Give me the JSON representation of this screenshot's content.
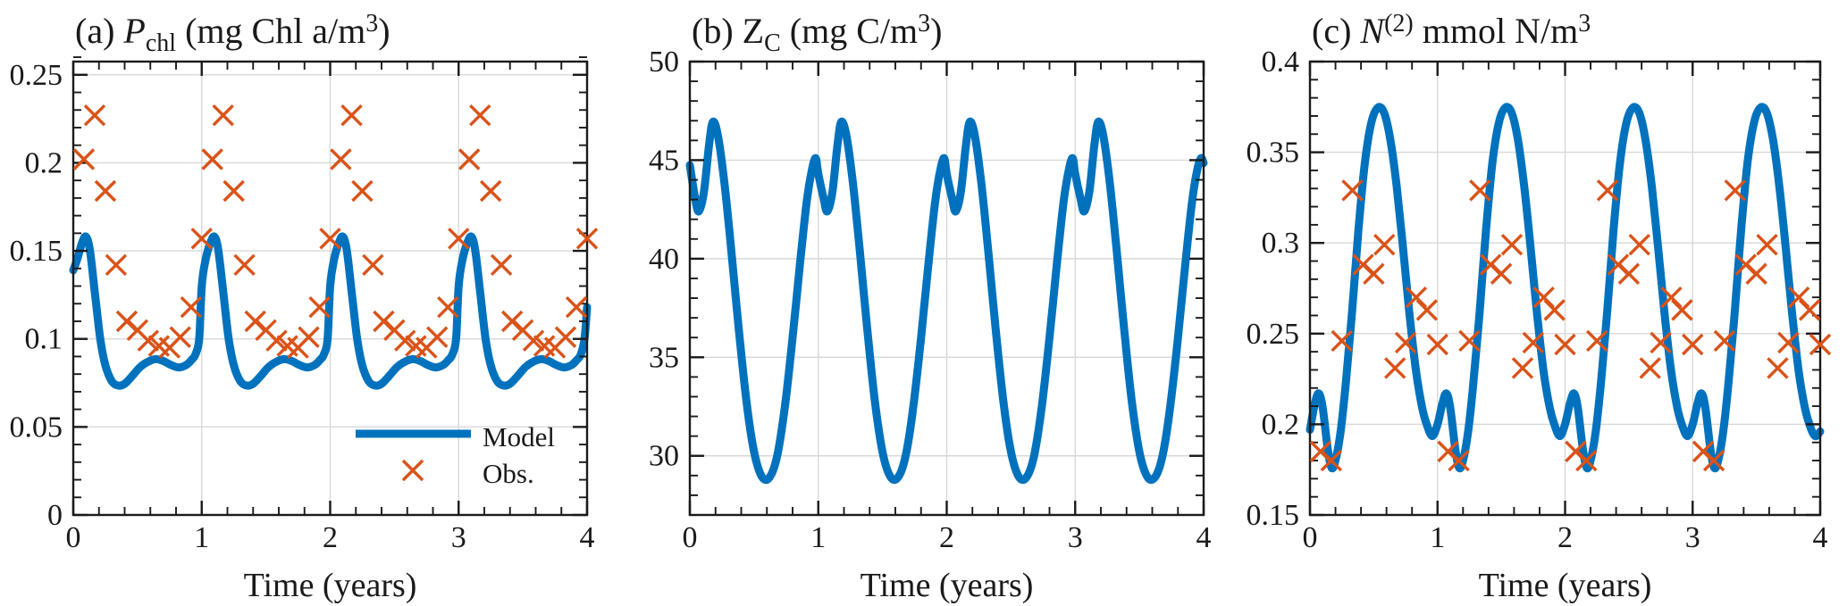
{
  "figure": {
    "background": "#ffffff",
    "colors": {
      "model": "#0072BD",
      "obs": "#D95319",
      "axis": "#1a1a1a",
      "grid": "#d8d8d8",
      "text": "#1a1a1a"
    },
    "legend": {
      "model_label": "Model",
      "obs_label": "Obs."
    }
  },
  "chart_data": [
    {
      "panel": "a",
      "type": "line+scatter",
      "title_parts": [
        {
          "t": "(a) "
        },
        {
          "t": "P",
          "s": "i"
        },
        {
          "t": "chl",
          "s": "sub"
        },
        {
          "t": " (mg Chl a/m"
        },
        {
          "t": "3",
          "s": "sup"
        },
        {
          "t": ")"
        }
      ],
      "xlabel": "Time (years)",
      "xlim": [
        0,
        4
      ],
      "xticks": [
        0,
        1,
        2,
        3,
        4
      ],
      "xtick_labels": [
        "0",
        "1",
        "2",
        "3",
        "4"
      ],
      "x_minor_step": 0.2,
      "ylim": [
        0,
        0.2575
      ],
      "yticks": [
        0,
        0.05,
        0.1,
        0.15,
        0.2,
        0.25
      ],
      "ytick_labels": [
        "0",
        "0.05",
        "0.1",
        "0.15",
        "0.2",
        "0.25"
      ],
      "y_minor_step": 0.01,
      "grid": true,
      "model_series": {
        "name": "Model",
        "period_years": 1,
        "periods": 4,
        "period_samples": [
          [
            0.0,
            0.13
          ],
          [
            0.03,
            0.145
          ],
          [
            0.07,
            0.155
          ],
          [
            0.1,
            0.158
          ],
          [
            0.13,
            0.15
          ],
          [
            0.17,
            0.125
          ],
          [
            0.21,
            0.1
          ],
          [
            0.25,
            0.085
          ],
          [
            0.3,
            0.076
          ],
          [
            0.35,
            0.0735
          ],
          [
            0.4,
            0.0745
          ],
          [
            0.46,
            0.079
          ],
          [
            0.52,
            0.084
          ],
          [
            0.58,
            0.087
          ],
          [
            0.64,
            0.0885
          ],
          [
            0.7,
            0.0875
          ],
          [
            0.76,
            0.0852
          ],
          [
            0.82,
            0.0838
          ],
          [
            0.88,
            0.0852
          ],
          [
            0.92,
            0.088
          ],
          [
            0.95,
            0.091
          ],
          [
            0.98,
            0.1
          ]
        ],
        "first_point": [
          0,
          0.139
        ],
        "last_point": [
          4,
          0.118
        ]
      },
      "obs_series": {
        "name": "Obs.",
        "years": [
          0,
          1,
          2,
          3
        ],
        "monthly_offsets": [
          [
            0.083,
            0.202
          ],
          [
            0.167,
            0.227
          ],
          [
            0.25,
            0.184
          ],
          [
            0.333,
            0.142
          ],
          [
            0.417,
            0.11
          ],
          [
            0.5,
            0.105
          ],
          [
            0.583,
            0.099
          ],
          [
            0.667,
            0.096
          ],
          [
            0.75,
            0.095
          ],
          [
            0.833,
            0.101
          ],
          [
            0.917,
            0.118
          ],
          [
            1.0,
            0.157
          ]
        ]
      },
      "show_legend": true,
      "legend_position": "southeast"
    },
    {
      "panel": "b",
      "type": "line",
      "title_parts": [
        {
          "t": "(b) Z"
        },
        {
          "t": "C",
          "s": "sub"
        },
        {
          "t": " (mg C/m"
        },
        {
          "t": "3",
          "s": "sup"
        },
        {
          "t": ")"
        }
      ],
      "xlabel": "Time (years)",
      "xlim": [
        0,
        4
      ],
      "xticks": [
        0,
        1,
        2,
        3,
        4
      ],
      "xtick_labels": [
        "0",
        "1",
        "2",
        "3",
        "4"
      ],
      "x_minor_step": 0.2,
      "ylim": [
        27,
        50
      ],
      "yticks": [
        30,
        35,
        40,
        45,
        50
      ],
      "ytick_labels": [
        "30",
        "35",
        "40",
        "45",
        "50"
      ],
      "y_minor_step": 1,
      "grid": true,
      "model_series": {
        "name": "Model",
        "period_years": 1,
        "periods": 4,
        "period_samples": [
          [
            0.0,
            44.3
          ],
          [
            0.04,
            43.1
          ],
          [
            0.07,
            42.4
          ],
          [
            0.11,
            43.4
          ],
          [
            0.15,
            45.8
          ],
          [
            0.18,
            46.95
          ],
          [
            0.22,
            46.2
          ],
          [
            0.27,
            43.8
          ],
          [
            0.32,
            40.6
          ],
          [
            0.38,
            36.5
          ],
          [
            0.44,
            32.8
          ],
          [
            0.5,
            30.2
          ],
          [
            0.56,
            28.95
          ],
          [
            0.62,
            28.9
          ],
          [
            0.68,
            30.0
          ],
          [
            0.74,
            32.5
          ],
          [
            0.8,
            36.0
          ],
          [
            0.86,
            39.9
          ],
          [
            0.91,
            42.9
          ],
          [
            0.95,
            44.5
          ],
          [
            0.98,
            45.1
          ]
        ],
        "first_point": [
          0,
          44.75
        ],
        "last_point": [
          4,
          44.85
        ]
      },
      "obs_series": null,
      "show_legend": false
    },
    {
      "panel": "c",
      "type": "line+scatter",
      "title_parts": [
        {
          "t": "(c) "
        },
        {
          "t": "N",
          "s": "i"
        },
        {
          "t": "(2)",
          "s": "sup"
        },
        {
          "t": " mmol N/m"
        },
        {
          "t": "3",
          "s": "sup"
        }
      ],
      "xlabel": "Time (years)",
      "xlim": [
        0,
        4
      ],
      "xticks": [
        0,
        1,
        2,
        3,
        4
      ],
      "xtick_labels": [
        "0",
        "1",
        "2",
        "3",
        "4"
      ],
      "x_minor_step": 0.2,
      "ylim": [
        0.15,
        0.4
      ],
      "yticks": [
        0.15,
        0.2,
        0.25,
        0.3,
        0.35,
        0.4
      ],
      "ytick_labels": [
        "0.15",
        "0.2",
        "0.25",
        "0.3",
        "0.35",
        "0.4"
      ],
      "y_minor_step": 0.01,
      "grid": true,
      "model_series": {
        "name": "Model",
        "period_years": 1,
        "periods": 4,
        "period_samples": [
          [
            0.0,
            0.2
          ],
          [
            0.04,
            0.212
          ],
          [
            0.07,
            0.217
          ],
          [
            0.1,
            0.209
          ],
          [
            0.14,
            0.186
          ],
          [
            0.17,
            0.176
          ],
          [
            0.2,
            0.18
          ],
          [
            0.24,
            0.196
          ],
          [
            0.28,
            0.222
          ],
          [
            0.33,
            0.262
          ],
          [
            0.38,
            0.307
          ],
          [
            0.43,
            0.344
          ],
          [
            0.48,
            0.366
          ],
          [
            0.53,
            0.3745
          ],
          [
            0.58,
            0.372
          ],
          [
            0.63,
            0.357
          ],
          [
            0.68,
            0.331
          ],
          [
            0.73,
            0.297
          ],
          [
            0.78,
            0.261
          ],
          [
            0.83,
            0.23
          ],
          [
            0.88,
            0.209
          ],
          [
            0.92,
            0.199
          ],
          [
            0.96,
            0.1935
          ]
        ],
        "first_point": [
          0,
          0.197
        ],
        "last_point": [
          4,
          0.196
        ]
      },
      "obs_series": {
        "name": "Obs.",
        "years": [
          0,
          1,
          2,
          3
        ],
        "monthly_offsets": [
          [
            0.083,
            0.185
          ],
          [
            0.167,
            0.18
          ],
          [
            0.25,
            0.246
          ],
          [
            0.333,
            0.329
          ],
          [
            0.417,
            0.288
          ],
          [
            0.5,
            0.283
          ],
          [
            0.583,
            0.299
          ],
          [
            0.667,
            0.231
          ],
          [
            0.75,
            0.245
          ],
          [
            0.833,
            0.27
          ],
          [
            0.917,
            0.263
          ],
          [
            1.0,
            0.244
          ]
        ]
      },
      "show_legend": false
    }
  ]
}
